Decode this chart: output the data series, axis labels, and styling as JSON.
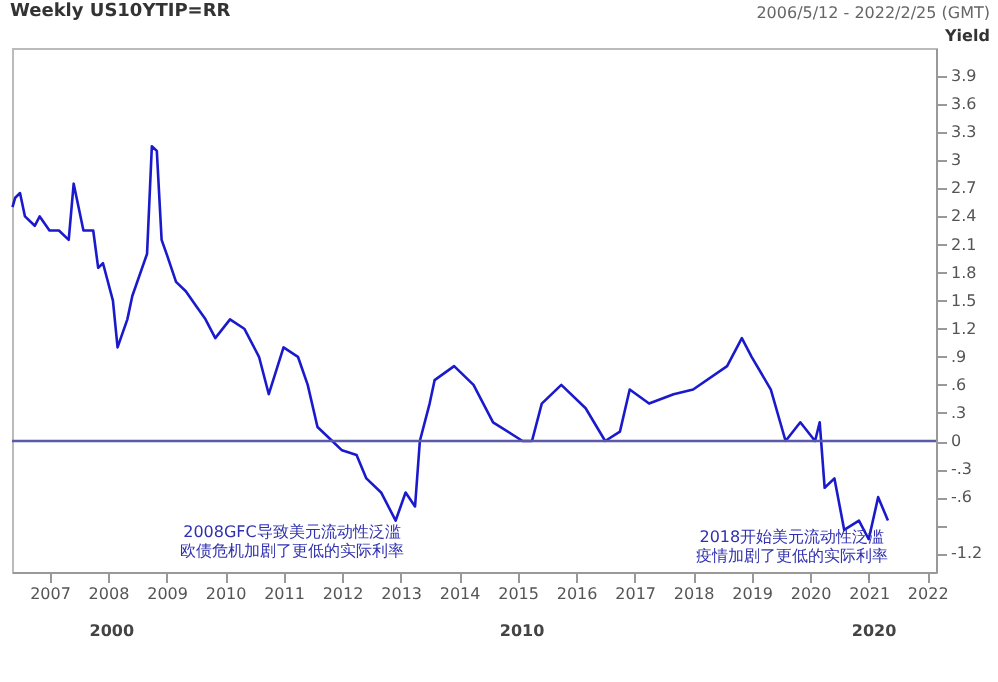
{
  "chart_data": {
    "type": "line",
    "title": "Weekly US10YTIP=RR",
    "subtitle": "2006/5/12 - 2022/2/25 (GMT)",
    "ylabel": "Yield",
    "x": [
      "2006-05-15",
      "2006-06",
      "2006-07",
      "2006-08",
      "2006-10",
      "2006-11",
      "2007-01",
      "2007-03",
      "2007-05",
      "2007-06",
      "2007-08",
      "2007-10",
      "2007-11",
      "2007-12",
      "2008-02",
      "2008-03",
      "2008-05",
      "2008-06",
      "2008-09",
      "2008-10",
      "2008-11",
      "2008-12",
      "2009-01",
      "2009-03",
      "2009-05",
      "2009-07",
      "2009-09",
      "2009-11",
      "2010-02",
      "2010-05",
      "2010-08",
      "2010-10",
      "2011-01",
      "2011-04",
      "2011-06",
      "2011-08",
      "2011-11",
      "2012-01",
      "2012-04",
      "2012-06",
      "2012-09",
      "2012-12",
      "2013-02",
      "2013-04",
      "2013-05",
      "2013-07",
      "2013-08",
      "2013-12",
      "2014-04",
      "2014-08",
      "2015-02",
      "2015-04",
      "2015-06",
      "2015-10",
      "2016-03",
      "2016-07",
      "2016-10",
      "2016-12",
      "2017-04",
      "2017-09",
      "2018-01",
      "2018-08",
      "2018-11",
      "2019-01",
      "2019-05",
      "2019-08",
      "2019-11",
      "2020-02",
      "2020-03",
      "2020-04",
      "2020-06",
      "2020-08",
      "2020-11",
      "2021-01",
      "2021-03",
      "2021-05"
    ],
    "series": [
      {
        "color": "#1a1acc",
        "values": [
          2.5,
          2.6,
          2.65,
          2.4,
          2.3,
          2.4,
          2.25,
          2.25,
          2.15,
          2.75,
          2.25,
          2.25,
          1.85,
          1.9,
          1.5,
          1.0,
          1.3,
          1.55,
          2.0,
          3.15,
          3.1,
          2.15,
          2.0,
          1.7,
          1.6,
          1.45,
          1.3,
          1.1,
          1.3,
          1.2,
          0.9,
          0.5,
          1.0,
          0.9,
          0.6,
          0.15,
          0.0,
          -0.1,
          -0.15,
          -0.4,
          -0.55,
          -0.85,
          -0.55,
          -0.7,
          0.0,
          0.4,
          0.65,
          0.8,
          0.6,
          0.2,
          0.0,
          0.0,
          0.4,
          0.6,
          0.35,
          0.0,
          0.1,
          0.55,
          0.4,
          0.5,
          0.55,
          0.8,
          1.1,
          0.9,
          0.55,
          0.0,
          0.2,
          0.0,
          0.2,
          -0.5,
          -0.4,
          -0.95,
          -0.85,
          -1.05,
          -0.6,
          -0.85
        ]
      }
    ],
    "xlim": [
      "2006-05-12",
      "2022-02-25"
    ],
    "xticks": [
      "2007",
      "2008",
      "2009",
      "2010",
      "2011",
      "2012",
      "2013",
      "2014",
      "2015",
      "2016",
      "2017",
      "2018",
      "2019",
      "2020",
      "2021",
      "2022"
    ],
    "ylim": [
      -1.4,
      4.2
    ],
    "yticks": [
      {
        "value": 3.9,
        "label": "3.9"
      },
      {
        "value": 3.6,
        "label": "3.6"
      },
      {
        "value": 3.3,
        "label": "3.3"
      },
      {
        "value": 3,
        "label": "3"
      },
      {
        "value": 2.7,
        "label": "2.7"
      },
      {
        "value": 2.4,
        "label": "2.4"
      },
      {
        "value": 2.1,
        "label": "2.1"
      },
      {
        "value": 1.8,
        "label": "1.8"
      },
      {
        "value": 1.5,
        "label": "1.5"
      },
      {
        "value": 1.2,
        "label": "1.2"
      },
      {
        "value": 0.9,
        "label": ".9"
      },
      {
        "value": 0.6,
        "label": ".6"
      },
      {
        "value": 0.3,
        "label": ".3"
      },
      {
        "value": 0,
        "label": "0"
      },
      {
        "value": -0.3,
        "label": "-.3"
      },
      {
        "value": -0.6,
        "label": "-.6"
      },
      {
        "value": -0.9,
        "label": null
      },
      {
        "value": -1.2,
        "label": "-1.2"
      }
    ],
    "ref_lines": [
      {
        "axis": "y",
        "value": 0,
        "color": "#5a5aa8"
      }
    ],
    "annotations": [
      "2000",
      "2010",
      "2020",
      "2008GFC导致美元流动性泛滥",
      "欧债危机加剧了更低的实际利率",
      "2018开始美元流动性泛滥",
      "疫情加剧了更低的实际利率"
    ],
    "grid": false,
    "marker": "none",
    "line_style": "solid"
  }
}
